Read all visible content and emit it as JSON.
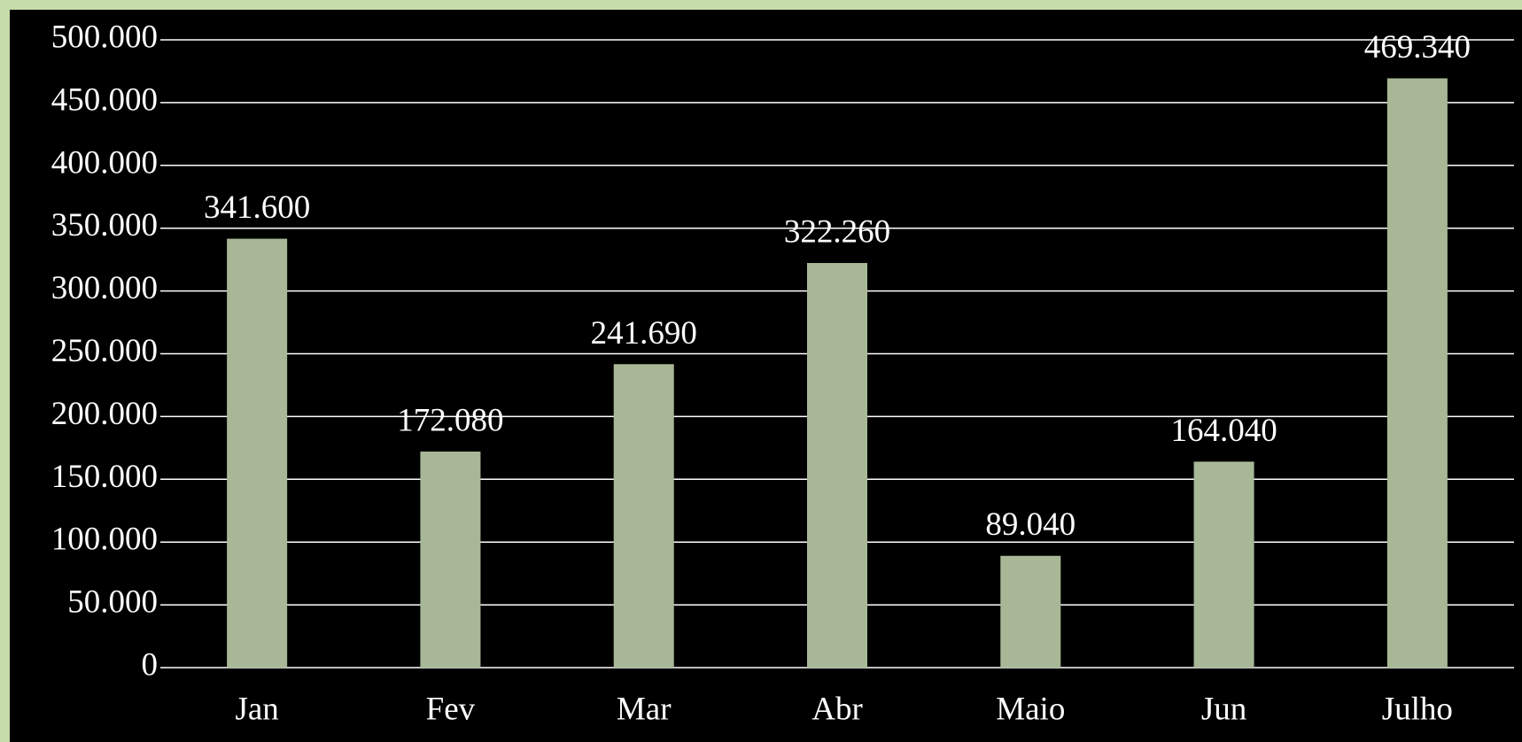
{
  "chart_data": {
    "type": "bar",
    "categories": [
      "Jan",
      "Fev",
      "Mar",
      "Abr",
      "Maio",
      "Jun",
      "Julho"
    ],
    "values": [
      341600,
      172080,
      241690,
      322260,
      89040,
      164040,
      469340
    ],
    "value_labels": [
      "341.600",
      "172.080",
      "241.690",
      "322.260",
      "89.040",
      "164.040",
      "469.340"
    ],
    "color": "#a8b896",
    "ylim": [
      0,
      500000
    ],
    "yticks": [
      0,
      {
        "value": 50000,
        "label": "50.000"
      },
      {
        "value": 100000,
        "label": "100.000"
      },
      {
        "value": 150000,
        "label": "150.000"
      },
      {
        "value": 200000,
        "label": "200.000"
      },
      {
        "value": 250000,
        "label": "250.000"
      },
      {
        "value": 300000,
        "label": "300.000"
      },
      {
        "value": 350000,
        "label": "350.000"
      },
      {
        "value": 400000,
        "label": "400.000"
      },
      {
        "value": 450000,
        "label": "450.000"
      },
      {
        "value": 500000,
        "label": "500.000"
      }
    ],
    "grid": true
  }
}
